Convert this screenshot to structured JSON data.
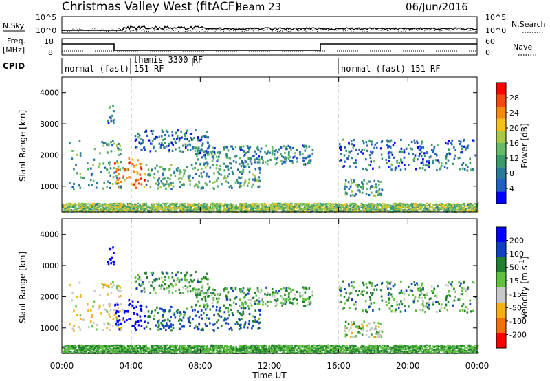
{
  "header": {
    "title": "Christmas Valley West (fitACF)",
    "beam": "Beam 23",
    "date": "06/Jun/2016"
  },
  "nsky_panel": {
    "left_label": "N.Sky",
    "right_label": "N.Search",
    "left_ticks": [
      "10^5",
      "10^0"
    ],
    "right_ticks": [
      "10^5",
      "10^0"
    ]
  },
  "freq_panel": {
    "left_label_1": "Freq.",
    "left_label_2": "[MHz]",
    "right_label": "Nave",
    "left_ticks": [
      "18",
      "8"
    ],
    "right_ticks": [
      "60",
      "0"
    ]
  },
  "cpid_panel": {
    "label": "CPID",
    "programs": [
      {
        "name": "normal (fast) 151 RF",
        "start_hour": 0
      },
      {
        "name": "themis 3300 RF",
        "start_hour": 4
      },
      {
        "name": "normal (fast) 151 RF",
        "start_hour": 16
      }
    ]
  },
  "colorbars": {
    "power": {
      "label": "Power [dB]",
      "ticks": [
        "28",
        "24",
        "20",
        "16",
        "12",
        "8",
        "4"
      ]
    },
    "velocity": {
      "label": "Velocity [m s^-1]",
      "ticks": [
        "200",
        "100",
        "50",
        "15",
        "-15",
        "-50",
        "-100",
        "-200"
      ]
    }
  },
  "axes": {
    "ylabel": "Slant Range [km]",
    "xlabel": "Time UT",
    "y_ticks": [
      "4000",
      "3000",
      "2000",
      "1000"
    ],
    "x_ticks": [
      "00:00",
      "04:00",
      "08:00",
      "12:00",
      "16:00",
      "20:00",
      "00:00"
    ]
  },
  "colors": {
    "power_scale": [
      "#0000ff",
      "#2060c0",
      "#2a7a9a",
      "#3a9a6a",
      "#66bb66",
      "#a8c84a",
      "#f2c018",
      "#f28c10",
      "#f24a10",
      "#ff0000"
    ],
    "velocity_scale": [
      "#ff0000",
      "#f07010",
      "#f4b014",
      "#c8c8c8",
      "#60c040",
      "#208030",
      "#1040c0",
      "#0000ff"
    ]
  },
  "chart_data": {
    "type": "heatmap",
    "title": "Christmas Valley West (fitACF)",
    "x_range_hours": [
      0,
      24
    ],
    "y_range_km": [
      180,
      4500
    ],
    "echo_regions": [
      {
        "start_hour": 0.4,
        "end_hour": 3.5,
        "range_min_km": 900,
        "range_max_km": 2500,
        "power_db": 12,
        "velocity": -50
      },
      {
        "start_hour": 2.6,
        "end_hour": 3.0,
        "range_min_km": 3000,
        "range_max_km": 3600,
        "power_db": 10,
        "velocity": 200
      },
      {
        "start_hour": 3.0,
        "end_hour": 4.8,
        "range_min_km": 900,
        "range_max_km": 1900,
        "power_db": 24,
        "velocity": 200
      },
      {
        "start_hour": 4.2,
        "end_hour": 8.5,
        "range_min_km": 2100,
        "range_max_km": 2800,
        "power_db": 8,
        "velocity": 15
      },
      {
        "start_hour": 4.8,
        "end_hour": 11.5,
        "range_min_km": 900,
        "range_max_km": 1700,
        "power_db": 12,
        "velocity": 50
      },
      {
        "start_hour": 7.5,
        "end_hour": 14.5,
        "range_min_km": 1700,
        "range_max_km": 2300,
        "power_db": 10,
        "velocity": 15
      },
      {
        "start_hour": 16.2,
        "end_hour": 18.5,
        "range_min_km": 700,
        "range_max_km": 1200,
        "power_db": 12,
        "velocity": -15
      },
      {
        "start_hour": 16.0,
        "end_hour": 23.9,
        "range_min_km": 1500,
        "range_max_km": 2500,
        "power_db": 8,
        "velocity": 15
      },
      {
        "start_hour": 0.0,
        "end_hour": 24.0,
        "range_min_km": 180,
        "range_max_km": 450,
        "power_db": 16,
        "velocity": 15
      }
    ]
  }
}
